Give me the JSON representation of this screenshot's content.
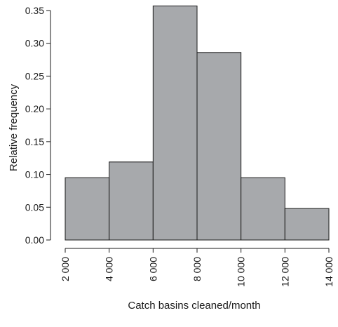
{
  "chart_data": {
    "type": "bar",
    "subtype": "histogram",
    "title": "",
    "xlabel": "Catch basins cleaned/month",
    "ylabel": "Relative frequency",
    "bins": [
      {
        "from": 2000,
        "to": 4000,
        "value": 0.095
      },
      {
        "from": 4000,
        "to": 6000,
        "value": 0.119
      },
      {
        "from": 6000,
        "to": 8000,
        "value": 0.357
      },
      {
        "from": 8000,
        "to": 10000,
        "value": 0.286
      },
      {
        "from": 10000,
        "to": 12000,
        "value": 0.095
      },
      {
        "from": 12000,
        "to": 14000,
        "value": 0.048
      }
    ],
    "xlim": [
      2000,
      14000
    ],
    "ylim": [
      0,
      0.35
    ],
    "xticks": [
      2000,
      4000,
      6000,
      8000,
      10000,
      12000,
      14000
    ],
    "xtick_labels": [
      "2 000",
      "4 000",
      "6 000",
      "8 000",
      "10 000",
      "12 000",
      "14 000"
    ],
    "yticks": [
      0.0,
      0.05,
      0.1,
      0.15,
      0.2,
      0.25,
      0.3,
      0.35
    ],
    "ytick_labels": [
      "0.00",
      "0.05",
      "0.10",
      "0.15",
      "0.20",
      "0.25",
      "0.30",
      "0.35"
    ],
    "bar_color": "#a7a9ac",
    "grid": false,
    "legend": "none"
  }
}
